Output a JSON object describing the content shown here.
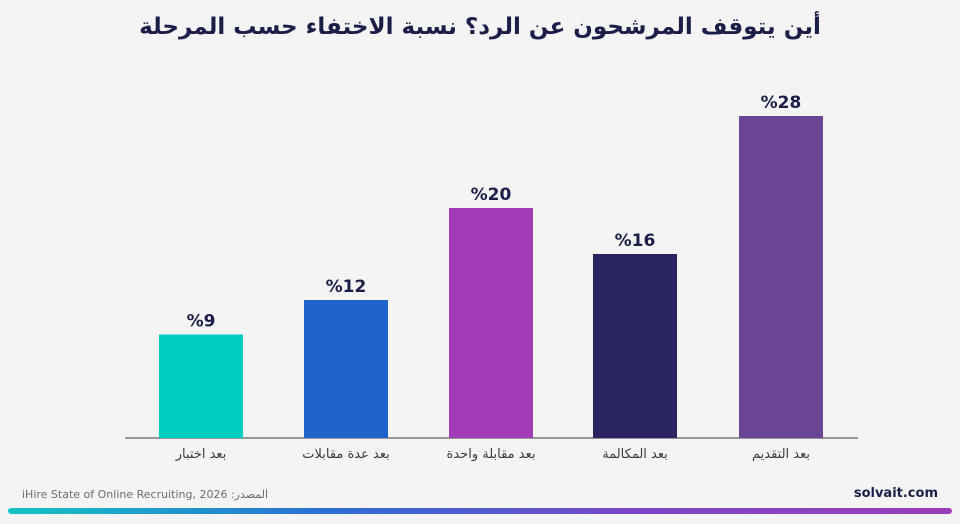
{
  "title": "أين يتوقف المرشحون عن الرد؟ نسبة الاختفاء حسب المرحلة",
  "source": {
    "label": "المصدر:",
    "text": "iHire State of Online Recruiting, 2026"
  },
  "brand": "solvait.com",
  "colors": {
    "title": "#1c1e4a",
    "axis": "#3a3a44",
    "gradient": [
      "#14c4c4",
      "#2b6fd4",
      "#7a45c8",
      "#9d3fb8"
    ]
  },
  "chart_data": {
    "type": "bar",
    "categories": [
      "بعد اختبار",
      "بعد عدة مقابلات",
      "بعد مقابلة واحدة",
      "بعد المكالمة",
      "بعد التقديم"
    ],
    "values": [
      9,
      12,
      20,
      16,
      28
    ],
    "value_labels": [
      "%9",
      "%12",
      "%20",
      "%16",
      "%28"
    ],
    "bar_colors": [
      "#00cdc4",
      "#1f63cc",
      "#a23cb6",
      "#2a2560",
      "#6a4596"
    ],
    "ylim": [
      0,
      28
    ],
    "grid": false,
    "legend": "none"
  }
}
